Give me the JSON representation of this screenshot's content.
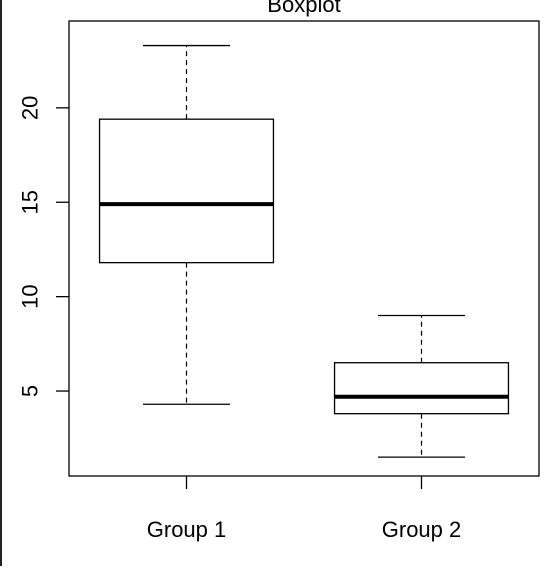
{
  "chart_data": {
    "type": "box",
    "title": "Boxplot",
    "categories": [
      "Group 1",
      "Group 2"
    ],
    "boxes": [
      {
        "category": "Group 1",
        "min": 4.3,
        "q1": 11.8,
        "median": 14.9,
        "q3": 19.4,
        "max": 23.3
      },
      {
        "category": "Group 2",
        "min": 1.5,
        "q1": 3.8,
        "median": 4.7,
        "q3": 6.5,
        "max": 9.0
      }
    ],
    "y_ticks": [
      5,
      10,
      15,
      20
    ],
    "ylim": [
      0.5,
      24.6
    ],
    "xlabel": "",
    "ylabel": ""
  }
}
